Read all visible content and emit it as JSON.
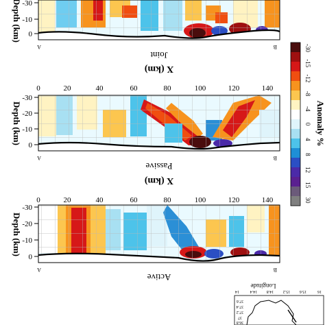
{
  "panels": [
    {
      "id": "joint",
      "caption": "Joint",
      "xlabel": "X (km)",
      "ylabel": "Depth (km)",
      "corner_left": "A",
      "corner_right": "B",
      "y_ticks": [
        "-30",
        "-20",
        "-10",
        "0"
      ],
      "x_ticks": []
    },
    {
      "id": "passive",
      "caption": "Passive",
      "xlabel": "X (km)",
      "ylabel": "Depth (km)",
      "corner_left": "A",
      "corner_right": "B",
      "y_ticks": [
        "-30",
        "-20",
        "-10",
        "0"
      ],
      "x_ticks": [
        "0",
        "20",
        "40",
        "60",
        "80",
        "100",
        "120",
        "140"
      ]
    },
    {
      "id": "active",
      "caption": "Active",
      "xlabel": "",
      "ylabel": "Depth (km)",
      "corner_left": "A",
      "corner_right": "B",
      "y_ticks": [
        "-30",
        "-20",
        "-10",
        "0"
      ],
      "x_ticks": [
        "0",
        "20",
        "40",
        "60",
        "80",
        "100",
        "120",
        "140"
      ]
    }
  ],
  "colorbar": {
    "label": "Anomaly %",
    "ticks": [
      "-30",
      "-15",
      "-12",
      "-8",
      "-4",
      "0",
      "4",
      "8",
      "12",
      "15",
      "30"
    ],
    "colors": [
      "#4a0d0d",
      "#9e1010",
      "#d61818",
      "#f04e10",
      "#f7931e",
      "#fcc64f",
      "#fff3c2",
      "#ffffff",
      "#dff4fb",
      "#a8e0f2",
      "#4dc3ea",
      "#1e8fd6",
      "#2b4fc4",
      "#4b2aa8",
      "#5a2090",
      "#6b5a7a",
      "#7f7f7f"
    ]
  },
  "inset": {
    "title": "Longitude",
    "top_ticks": [
      "14",
      "14.4",
      "14.8",
      "15.2",
      "15.6",
      "16"
    ],
    "side_ticks": [
      "36.8",
      "37",
      "37.2",
      "37.4",
      "37.6"
    ]
  }
}
